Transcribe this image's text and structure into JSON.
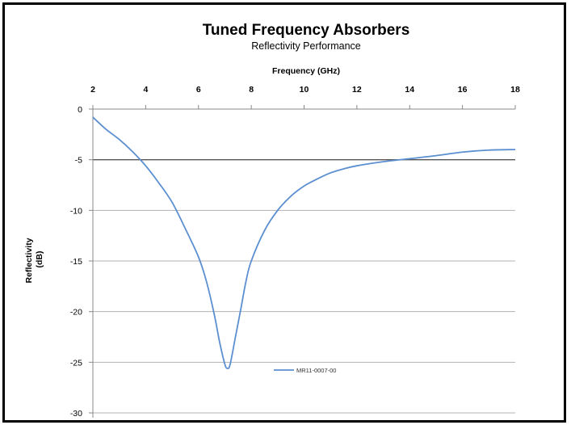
{
  "chart_data": {
    "type": "line",
    "title": "Tuned Frequency Absorbers",
    "subtitle": "Reflectivity Performance",
    "xlabel": "Frequency (GHz)",
    "ylabel_lines": [
      "Reflectivity",
      "(dB)"
    ],
    "xlim": [
      2,
      18
    ],
    "ylim": [
      -30,
      0
    ],
    "x_ticks": [
      2,
      4,
      6,
      8,
      10,
      12,
      14,
      16,
      18
    ],
    "y_ticks": [
      0,
      -5,
      -10,
      -15,
      -20,
      -25,
      -30
    ],
    "x_axis_position": "top",
    "grid": true,
    "reference_line": -5,
    "legend_position": "bottom-center",
    "series": [
      {
        "name": "MR11-0007-00",
        "color": "#5b8fd0",
        "x": [
          2.0,
          2.5,
          3.0,
          3.5,
          4.0,
          4.5,
          5.0,
          5.5,
          6.0,
          6.3,
          6.6,
          6.8,
          7.0,
          7.1,
          7.2,
          7.4,
          7.6,
          7.8,
          8.0,
          8.5,
          9.0,
          9.5,
          10.0,
          10.5,
          11.0,
          11.5,
          12.0,
          13.0,
          14.0,
          15.0,
          16.0,
          17.0,
          18.0
        ],
        "y": [
          -0.8,
          -2.0,
          -3.0,
          -4.2,
          -5.6,
          -7.3,
          -9.2,
          -11.8,
          -14.6,
          -17.0,
          -20.3,
          -23.0,
          -25.2,
          -25.6,
          -25.2,
          -22.5,
          -19.8,
          -17.0,
          -15.0,
          -12.0,
          -10.0,
          -8.6,
          -7.6,
          -6.9,
          -6.3,
          -5.9,
          -5.6,
          -5.2,
          -4.9,
          -4.6,
          -4.25,
          -4.05,
          -4.0
        ]
      }
    ]
  }
}
